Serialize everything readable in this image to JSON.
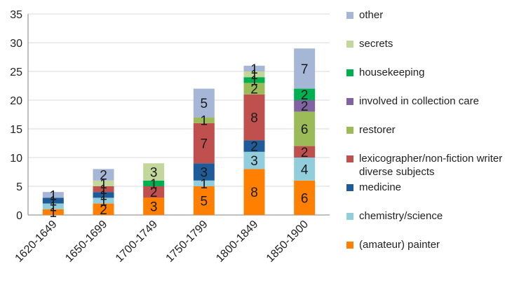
{
  "chart_data": {
    "type": "bar",
    "stacked": true,
    "categories": [
      "1620-1649",
      "1650-1699",
      "1700-1749",
      "1750-1799",
      "1800-1849",
      "1850-1900"
    ],
    "ylim": [
      0,
      35
    ],
    "yticks": [
      "0",
      "5",
      "10",
      "15",
      "20",
      "25",
      "30",
      "35"
    ],
    "grid": true,
    "legend_position": "right",
    "series": [
      {
        "name": "(amateur) painter",
        "color": "#FF8000",
        "values": [
          1,
          2,
          3,
          5,
          8,
          6
        ]
      },
      {
        "name": "chemistry/science",
        "color": "#92CDDC",
        "values": [
          1,
          1,
          0,
          1,
          3,
          4
        ]
      },
      {
        "name": "medicine",
        "color": "#1F5B99",
        "values": [
          1,
          1,
          0,
          3,
          2,
          0
        ]
      },
      {
        "name": "lexicographer/non-fiction writer diverse subjects",
        "color": "#C0504D",
        "values": [
          0,
          1,
          2,
          7,
          8,
          2
        ]
      },
      {
        "name": "restorer",
        "color": "#9BBB59",
        "values": [
          0,
          0,
          0,
          1,
          2,
          6
        ]
      },
      {
        "name": "involved in collection care",
        "color": "#8064A2",
        "values": [
          0,
          0,
          0,
          0,
          0,
          2
        ]
      },
      {
        "name": "housekeeping",
        "color": "#00B050",
        "values": [
          0,
          0,
          1,
          0,
          1,
          2
        ]
      },
      {
        "name": "secrets",
        "color": "#C3D69B",
        "values": [
          0,
          1,
          3,
          0,
          1,
          0
        ]
      },
      {
        "name": "other",
        "color": "#A6B6D6",
        "values": [
          1,
          2,
          0,
          5,
          1,
          7
        ]
      }
    ]
  }
}
